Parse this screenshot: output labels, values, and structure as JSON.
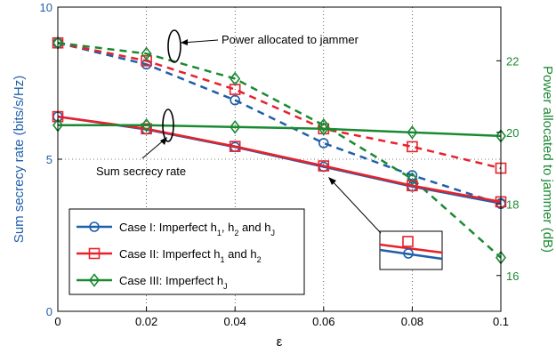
{
  "chart_data": {
    "type": "line",
    "xlabel": "ε",
    "ylabel_left": "Sum secrecy rate (bits/s/Hz)",
    "ylabel_right": "Power allocated to jammer (dB)",
    "x": [
      0,
      0.02,
      0.04,
      0.06,
      0.08,
      0.1
    ],
    "x_ticks": [
      "0",
      "0.02",
      "0.04",
      "0.06",
      "0.08",
      "0.1"
    ],
    "ylim_left": [
      0,
      10
    ],
    "ylim_right": [
      15,
      23.5
    ],
    "y_ticks_left": [
      "0",
      "5",
      "10"
    ],
    "y_ticks_right": [
      "16",
      "18",
      "20",
      "22"
    ],
    "grid": true,
    "colors": {
      "case1": "#1f5faa",
      "case2": "#e8212b",
      "case3": "#1a8a32",
      "left_axis": "#1f5faa",
      "right_axis": "#1a8a32"
    },
    "series": [
      {
        "name": "Case I: Imperfect h1, h2 and hJ",
        "legend_main": "Case I: Imperfect h",
        "legend_parts": [
          "1",
          ", h",
          "2",
          " and h",
          "J"
        ],
        "key": "case1",
        "marker": "circle",
        "axis": "left",
        "style": "solid",
        "values": [
          6.4,
          5.98,
          5.4,
          4.75,
          4.1,
          3.55
        ]
      },
      {
        "name": "Case II: Imperfect h1 and h2",
        "legend_main": "Case II: Imperfect h",
        "legend_parts": [
          "1",
          " and h",
          "2"
        ],
        "key": "case2",
        "marker": "square",
        "axis": "left",
        "style": "solid",
        "values": [
          6.4,
          6.0,
          5.42,
          4.78,
          4.13,
          3.6
        ]
      },
      {
        "name": "Case III: Imperfect hJ",
        "legend_main": "Case III: Imperfect h",
        "legend_parts": [
          "J"
        ],
        "key": "case3",
        "marker": "diamond",
        "axis": "right",
        "style": "solid",
        "values": [
          20.2,
          20.2,
          20.15,
          20.1,
          20.0,
          19.9
        ]
      },
      {
        "name": "Case I jammer power",
        "key": "case1",
        "marker": "circle",
        "axis": "right",
        "style": "dashed",
        "values": [
          22.5,
          21.9,
          20.9,
          19.7,
          18.8,
          18.0
        ]
      },
      {
        "name": "Case II jammer power",
        "key": "case2",
        "marker": "square",
        "axis": "right",
        "style": "dashed",
        "values": [
          22.5,
          22.0,
          21.2,
          20.1,
          19.6,
          19.0
        ]
      },
      {
        "name": "Case III jammer power",
        "key": "case3",
        "marker": "diamond",
        "axis": "right",
        "style": "dashed",
        "values": [
          22.5,
          22.2,
          21.5,
          20.2,
          18.7,
          16.5
        ]
      }
    ],
    "annotations": {
      "power_label": "Power allocated to jammer",
      "rate_label": "Sum secrecy rate"
    }
  }
}
